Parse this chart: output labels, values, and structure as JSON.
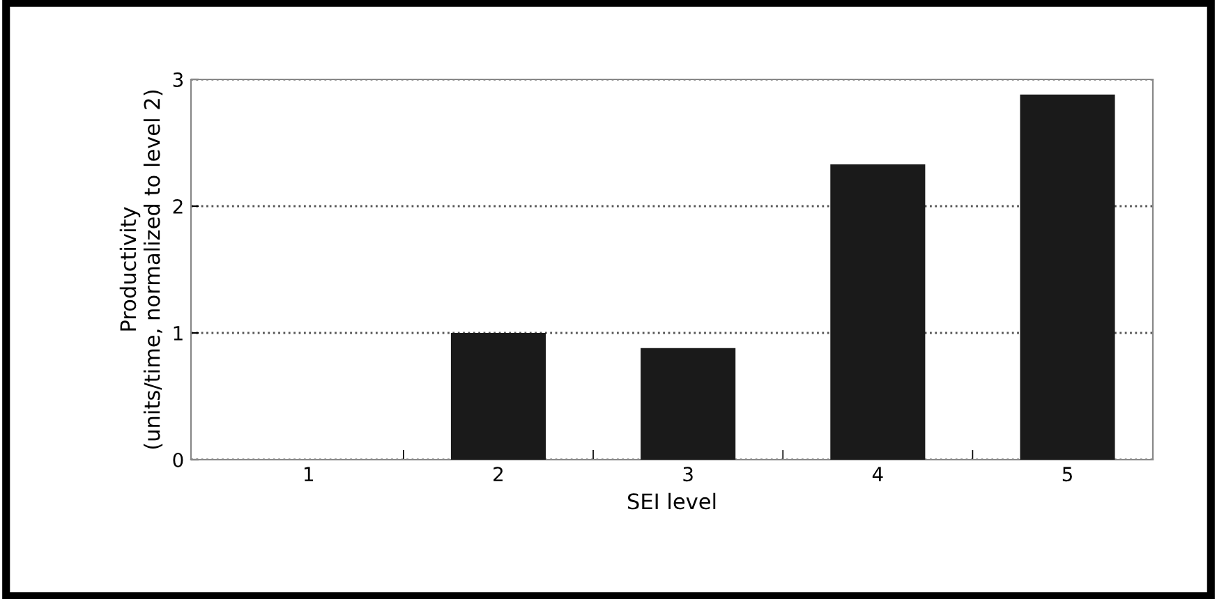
{
  "chart_data": {
    "type": "bar",
    "categories": [
      "1",
      "2",
      "3",
      "4",
      "5"
    ],
    "values": [
      0,
      1.0,
      0.88,
      2.33,
      2.88
    ],
    "color": "#1a1a1a",
    "xlabel": "SEI level",
    "ylabel": "Productivity\n(units/time, normalized to level 2)",
    "ylim": [
      0,
      3
    ],
    "yticks": [
      0,
      1,
      2,
      3
    ],
    "grid": "y"
  }
}
